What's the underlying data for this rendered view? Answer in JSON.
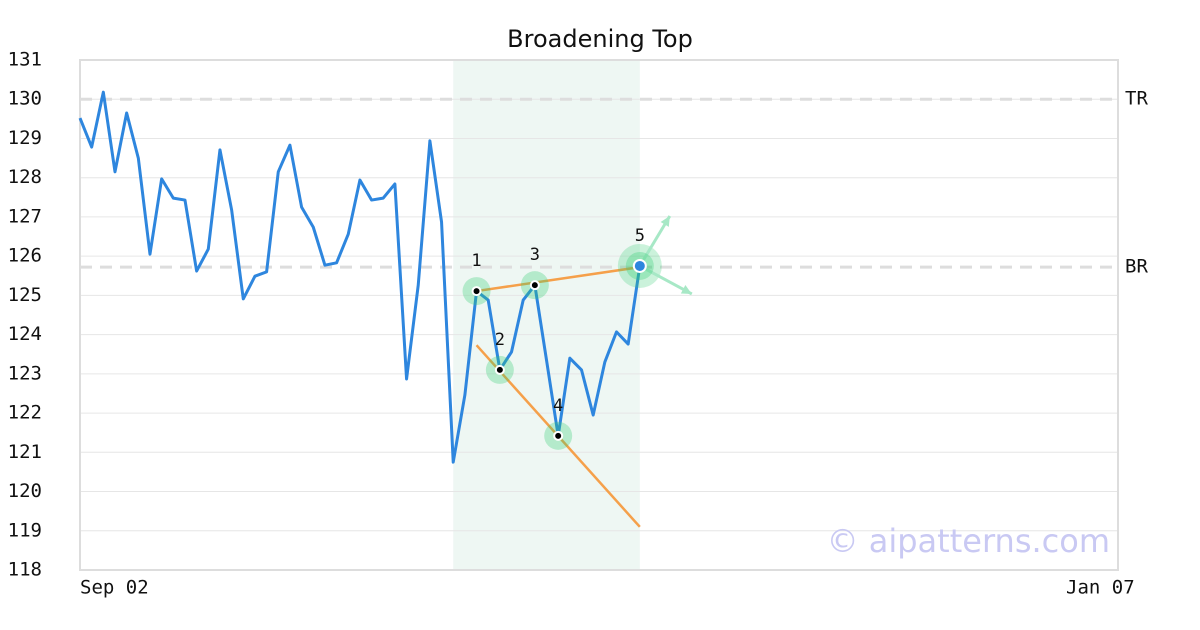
{
  "chart_data": {
    "type": "line",
    "title": "Broadening Top",
    "x": [
      0,
      1,
      2,
      3,
      4,
      5,
      6,
      7,
      8,
      9,
      10,
      11,
      12,
      13,
      14,
      15,
      16,
      17,
      18,
      19,
      20,
      21,
      22,
      23,
      24,
      25,
      26,
      27,
      28,
      29,
      30,
      31,
      32,
      33,
      34,
      35,
      36,
      37,
      38,
      39,
      40,
      41,
      42,
      43,
      44,
      45,
      46,
      47,
      48
    ],
    "values": [
      129.52,
      128.78,
      130.18,
      128.15,
      129.65,
      128.5,
      126.05,
      127.97,
      127.48,
      127.43,
      125.62,
      126.18,
      128.71,
      127.18,
      124.91,
      125.49,
      125.6,
      128.15,
      128.83,
      127.25,
      126.74,
      125.77,
      125.83,
      126.56,
      127.94,
      127.43,
      127.48,
      127.84,
      122.87,
      125.26,
      128.94,
      126.87,
      120.75,
      122.46,
      125.11,
      124.88,
      123.1,
      123.56,
      124.88,
      125.26,
      123.35,
      121.42,
      123.4,
      123.1,
      121.95,
      123.3,
      124.07,
      123.76,
      125.75
    ],
    "color": "#2e86de",
    "xlim": [
      0,
      89
    ],
    "xticks": [
      {
        "value": 0,
        "label": "Sep 02"
      },
      {
        "value": 89,
        "label": "Jan 07"
      }
    ],
    "ylim": [
      118,
      131
    ],
    "yticks": [
      118,
      119,
      120,
      121,
      122,
      123,
      124,
      125,
      126,
      127,
      128,
      129,
      130,
      131
    ],
    "grid": true,
    "region": [
      32,
      48
    ],
    "levels": [
      {
        "label": "TR",
        "value": 130.0
      },
      {
        "label": "BR",
        "value": 125.72
      }
    ],
    "points": [
      {
        "label": "1",
        "x": 34,
        "y": 125.11
      },
      {
        "label": "2",
        "x": 36,
        "y": 123.1
      },
      {
        "label": "3",
        "x": 39,
        "y": 125.26
      },
      {
        "label": "4",
        "x": 41,
        "y": 121.42
      },
      {
        "label": "5",
        "x": 48,
        "y": 125.75
      }
    ],
    "trend_lines": [
      {
        "x": [
          34,
          48
        ],
        "y": [
          125.11,
          125.72
        ]
      },
      {
        "x": [
          34,
          48
        ],
        "y": [
          123.73,
          119.1
        ]
      }
    ],
    "trend_color": "#f5a04a",
    "watermark": "© aipatterns.com"
  }
}
